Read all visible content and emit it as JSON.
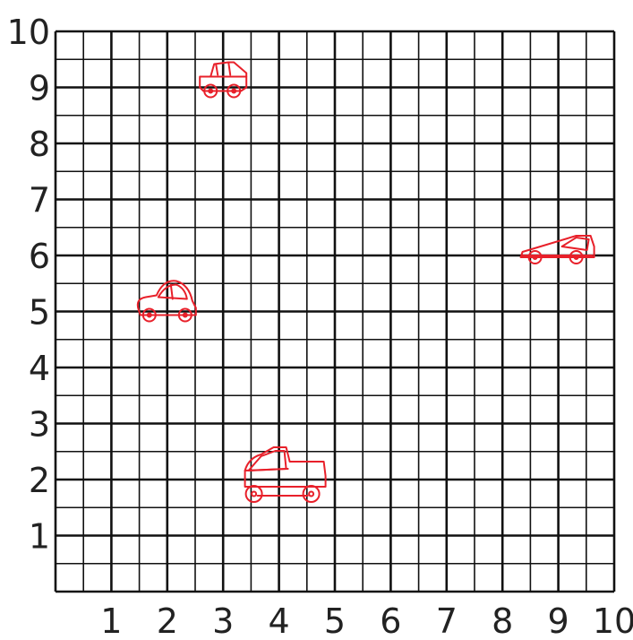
{
  "chart_data": {
    "type": "scatter",
    "xlim": [
      0,
      10
    ],
    "ylim": [
      0,
      10
    ],
    "x_ticks": [
      "1",
      "2",
      "3",
      "4",
      "5",
      "6",
      "7",
      "8",
      "9",
      "10"
    ],
    "y_ticks": [
      "1",
      "2",
      "3",
      "4",
      "5",
      "6",
      "7",
      "8",
      "9",
      "10"
    ],
    "grid": true,
    "points": [
      {
        "x": 3,
        "y": 9,
        "marker": "jeep-icon"
      },
      {
        "x": 2,
        "y": 5,
        "marker": "beetle-car-icon"
      },
      {
        "x": 9,
        "y": 6,
        "marker": "sports-car-icon"
      },
      {
        "x": 4,
        "y": 2,
        "marker": "pickup-truck-icon"
      }
    ],
    "marker_color": "#e8202a"
  }
}
